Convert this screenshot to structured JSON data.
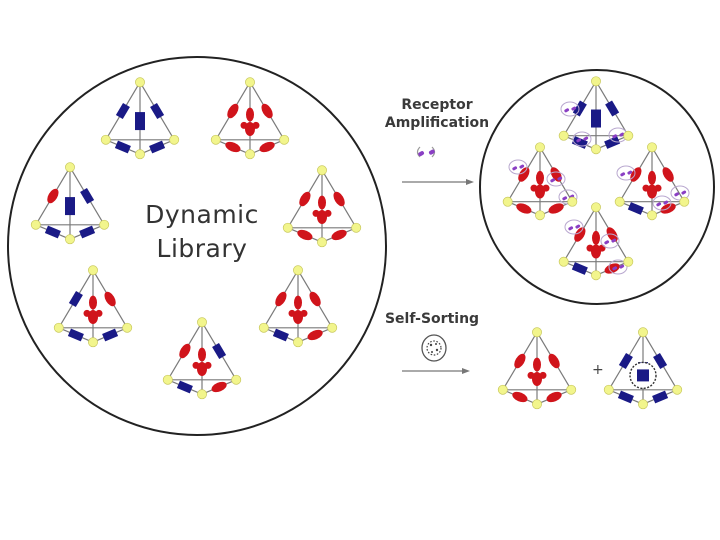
{
  "library": {
    "title_line1": "Dynamic",
    "title_line2": "Library"
  },
  "arrows": {
    "top_label_line1": "Receptor",
    "top_label_line2": "Amplification",
    "bottom_label": "Self-Sorting"
  },
  "plus_sign": "+",
  "colors": {
    "red_ligand": "#d0141b",
    "blue_ligand": "#1a1a86",
    "vertex": "#f2f58c",
    "receptor": "#8a3fc4",
    "edge": "#7a7a7a",
    "circle": "#222222"
  },
  "icons": {
    "receptor": "purple-receptor-capsule-icon",
    "self_sort_guest": "dotted-macrocycle-icon"
  }
}
